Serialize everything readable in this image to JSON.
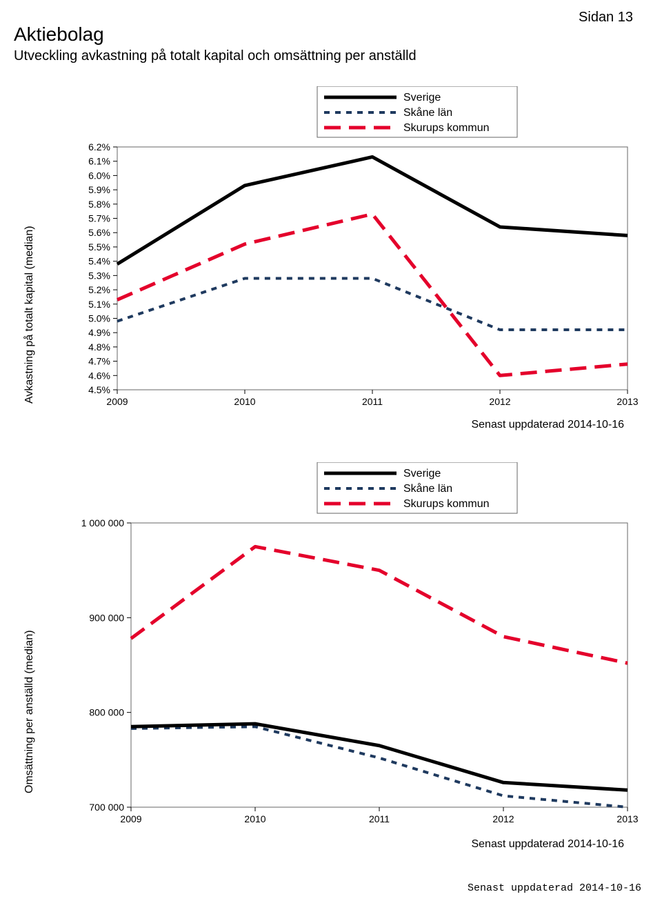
{
  "page_number": "Sidan 13",
  "title": "Aktiebolag",
  "subtitle": "Utveckling avkastning på totalt kapital och omsättning per anställd",
  "colors": {
    "series_sverige": "#000000",
    "series_skane": "#1f3a5f",
    "series_skurups": "#e4002b",
    "axis": "#000000",
    "border": "#666666",
    "background": "#ffffff",
    "tick_text": "#000000"
  },
  "legend_labels": {
    "sverige": "Sverige",
    "skane": "Skåne län",
    "skurups": "Skurups kommun"
  },
  "update_text": "Senast uppdaterad 2014-10-16",
  "chart1": {
    "type": "line",
    "y_label": "Avkastning på totalt kapital (median)",
    "x_categories": [
      "2009",
      "2010",
      "2011",
      "2012",
      "2013"
    ],
    "y_ticks": [
      "6.2%",
      "6.1%",
      "6.0%",
      "5.9%",
      "5.8%",
      "5.7%",
      "5.6%",
      "5.5%",
      "5.4%",
      "5.3%",
      "5.2%",
      "5.1%",
      "5.0%",
      "4.9%",
      "4.8%",
      "4.7%",
      "4.6%",
      "4.5%"
    ],
    "y_min": 4.5,
    "y_max": 6.2,
    "series": {
      "sverige": [
        5.38,
        5.93,
        6.13,
        5.64,
        5.58
      ],
      "skane": [
        4.98,
        5.28,
        5.28,
        4.92,
        4.92
      ],
      "skurups": [
        5.13,
        5.52,
        5.73,
        4.6,
        4.68
      ]
    },
    "line_widths": {
      "sverige": 5,
      "skane": 4,
      "skurups": 5
    },
    "dash": {
      "sverige": "",
      "skane": "8,8",
      "skurups": "24,12"
    },
    "axis_fontsize": 14,
    "label_fontsize": 16
  },
  "chart2": {
    "type": "line",
    "y_label": "Omsättning per anställd (median)",
    "x_categories": [
      "2009",
      "2010",
      "2011",
      "2012",
      "2013"
    ],
    "y_ticks": [
      "1 000 000",
      "900 000",
      "800 000",
      "700 000"
    ],
    "y_min": 700000,
    "y_max": 1000000,
    "series": {
      "sverige": [
        785000,
        788000,
        765000,
        726000,
        718000
      ],
      "skane": [
        783000,
        785000,
        752000,
        712000,
        700000
      ],
      "skurups": [
        878000,
        975000,
        950000,
        880000,
        852000
      ]
    },
    "line_widths": {
      "sverige": 5,
      "skane": 4,
      "skurups": 5
    },
    "dash": {
      "sverige": "",
      "skane": "8,8",
      "skurups": "24,12"
    },
    "axis_fontsize": 14,
    "label_fontsize": 16
  }
}
